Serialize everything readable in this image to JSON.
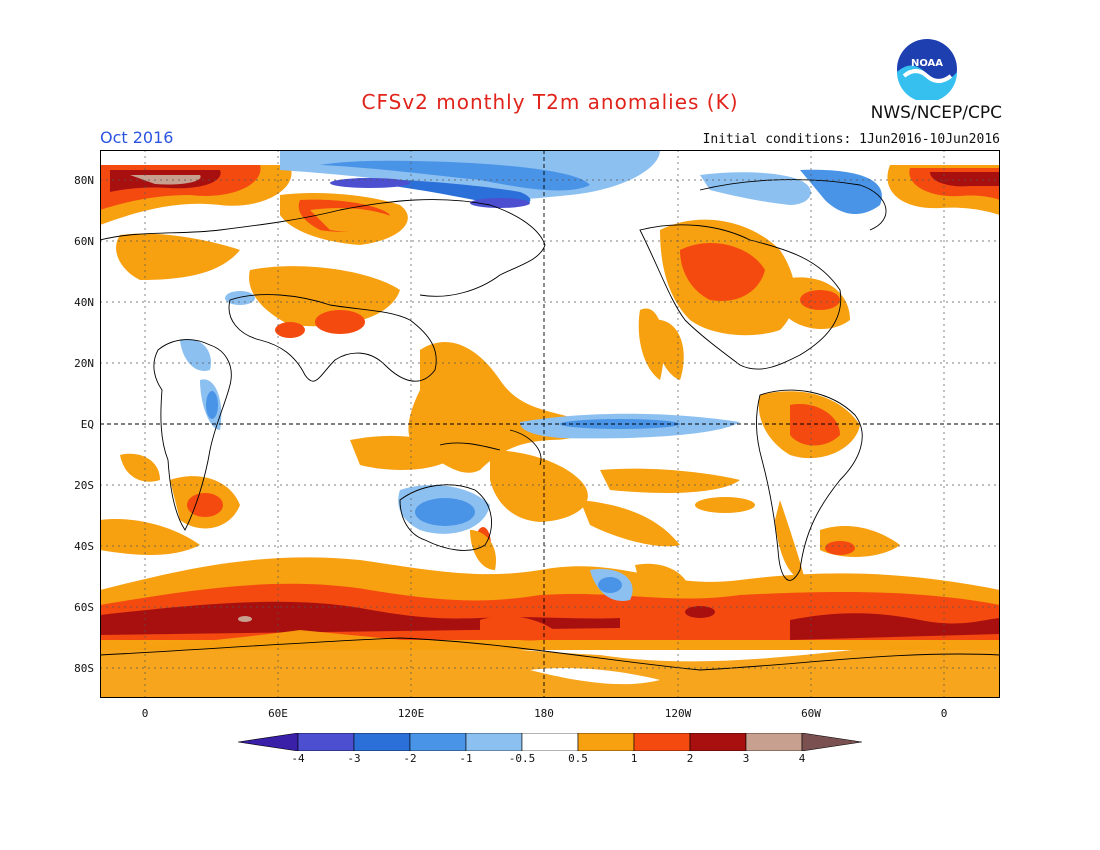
{
  "header": {
    "title": "CFSv2 monthly T2m anomalies (K)",
    "month": "Oct 2016",
    "initial_conditions": "Initial conditions: 1Jun2016-10Jun2016",
    "agency": "NWS/NCEP/CPC",
    "logo_text": "NOAA"
  },
  "axes": {
    "y_labels": [
      "80N",
      "60N",
      "40N",
      "20N",
      "EQ",
      "20S",
      "40S",
      "60S",
      "80S"
    ],
    "x_labels": [
      "0",
      "60E",
      "120E",
      "180",
      "120W",
      "60W",
      "0"
    ]
  },
  "colorbar": {
    "labels": [
      "-4",
      "-3",
      "-2",
      "-1",
      "-0.5",
      "0.5",
      "1",
      "2",
      "3",
      "4"
    ],
    "colors": [
      "#3a1fa8",
      "#4b4fd0",
      "#2b6fd8",
      "#4a94e8",
      "#8cc0f0",
      "#ffffff",
      "#f7a010",
      "#f44a10",
      "#a81010",
      "#c8a090",
      "#7a5050"
    ]
  }
}
